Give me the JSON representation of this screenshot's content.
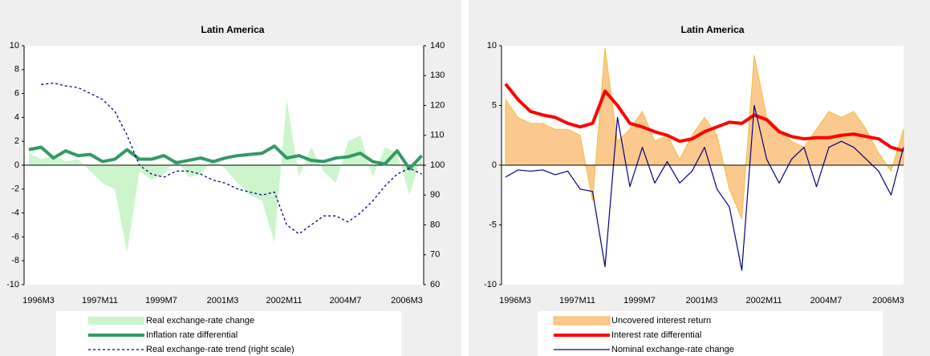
{
  "chart_data": [
    {
      "type": "line",
      "title": "Latin America",
      "categories": [
        "1996M3",
        null,
        null,
        null,
        null,
        "1997M11",
        null,
        null,
        null,
        null,
        "1999M7",
        null,
        null,
        null,
        null,
        "2001M3",
        null,
        null,
        null,
        null,
        "2002M11",
        null,
        null,
        null,
        null,
        "2004M7",
        null,
        null,
        null,
        null,
        "2006M3",
        null,
        null
      ],
      "ylim": [
        -10,
        10
      ],
      "yticks": [
        -10,
        -8,
        -6,
        -4,
        -2,
        0,
        2,
        4,
        6,
        8,
        10
      ],
      "y2lim": [
        60,
        140
      ],
      "y2ticks": [
        60,
        70,
        80,
        90,
        100,
        110,
        120,
        130,
        140
      ],
      "series": [
        {
          "name": "Real exchange-rate change",
          "style": "area",
          "color": "#ccf5cc",
          "values": [
            1.0,
            0.5,
            0.8,
            0.3,
            0.5,
            -0.5,
            -1.5,
            -2.0,
            -7.3,
            -0.5,
            -1.2,
            -0.8,
            0.5,
            -1.0,
            -0.8,
            0.5,
            -0.3,
            -1.5,
            -2.5,
            -3.0,
            -6.5,
            5.5,
            -1.0,
            1.5,
            -0.5,
            -1.5,
            2.0,
            2.5,
            -1.0,
            1.5,
            1.0,
            -2.5,
            0.8
          ]
        },
        {
          "name": "Inflation rate differential",
          "style": "thick",
          "color": "#339966",
          "values": [
            1.3,
            1.5,
            0.6,
            1.2,
            0.8,
            0.9,
            0.3,
            0.5,
            1.3,
            0.5,
            0.5,
            0.8,
            0.2,
            0.4,
            0.6,
            0.3,
            0.6,
            0.8,
            0.9,
            1.0,
            1.6,
            0.6,
            0.8,
            0.4,
            0.3,
            0.6,
            0.7,
            1.0,
            0.3,
            0.1,
            1.2,
            -0.3,
            0.8
          ]
        },
        {
          "name": "Real exchange-rate trend (right scale)",
          "style": "dashed",
          "color": "#000080",
          "axis": "y2",
          "values": [
            null,
            127,
            127.5,
            126.5,
            126,
            124,
            122,
            118,
            110,
            100,
            97,
            96,
            98,
            98,
            97,
            95,
            94,
            92,
            91,
            90,
            91,
            80,
            77,
            80,
            83,
            83,
            81,
            84,
            88,
            93,
            97,
            99,
            97
          ]
        }
      ]
    },
    {
      "type": "line",
      "title": "Latin America",
      "categories": [
        "1996M3",
        null,
        null,
        null,
        null,
        "1997M11",
        null,
        null,
        null,
        null,
        "1999M7",
        null,
        null,
        null,
        null,
        "2001M3",
        null,
        null,
        null,
        null,
        "2002M11",
        null,
        null,
        null,
        null,
        "2004M7",
        null,
        null,
        null,
        null,
        "2006M3",
        null,
        null
      ],
      "ylim": [
        -10,
        10
      ],
      "yticks": [
        -10,
        -5,
        0,
        5,
        10
      ],
      "series": [
        {
          "name": "Uncovered interest return",
          "style": "area",
          "color": "#fbc98e",
          "values": [
            5.5,
            4.0,
            3.5,
            3.5,
            3.0,
            3.0,
            2.5,
            -3.0,
            9.8,
            2.0,
            3.0,
            4.5,
            2.0,
            2.5,
            0.5,
            2.5,
            4.0,
            2.5,
            -2.0,
            -4.5,
            9.2,
            4.0,
            3.0,
            2.0,
            1.5,
            3.0,
            4.5,
            4.0,
            4.5,
            3.0,
            1.0,
            -0.5,
            3.0
          ]
        },
        {
          "name": "Interest rate differential",
          "style": "thick",
          "color": "#ff0000",
          "values": [
            6.8,
            5.5,
            4.5,
            4.2,
            4.0,
            3.5,
            3.2,
            3.5,
            6.2,
            5.0,
            3.5,
            3.2,
            2.8,
            2.5,
            2.0,
            2.2,
            2.8,
            3.2,
            3.6,
            3.5,
            4.2,
            3.8,
            2.8,
            2.4,
            2.2,
            2.3,
            2.3,
            2.5,
            2.6,
            2.4,
            2.2,
            1.5,
            1.2
          ]
        },
        {
          "name": "Nominal exchange-rate change",
          "style": "thin",
          "color": "#000080",
          "values": [
            -1.0,
            -0.4,
            -0.5,
            -0.4,
            -0.8,
            -0.5,
            -2.0,
            -2.2,
            -8.5,
            4.0,
            -1.8,
            1.5,
            -1.5,
            0.3,
            -1.5,
            -0.5,
            1.5,
            -2.0,
            -3.5,
            -8.8,
            5.0,
            0.5,
            -1.5,
            0.5,
            1.5,
            -1.8,
            1.5,
            2.0,
            1.5,
            0.5,
            -0.5,
            -2.5,
            1.5
          ]
        }
      ]
    }
  ]
}
